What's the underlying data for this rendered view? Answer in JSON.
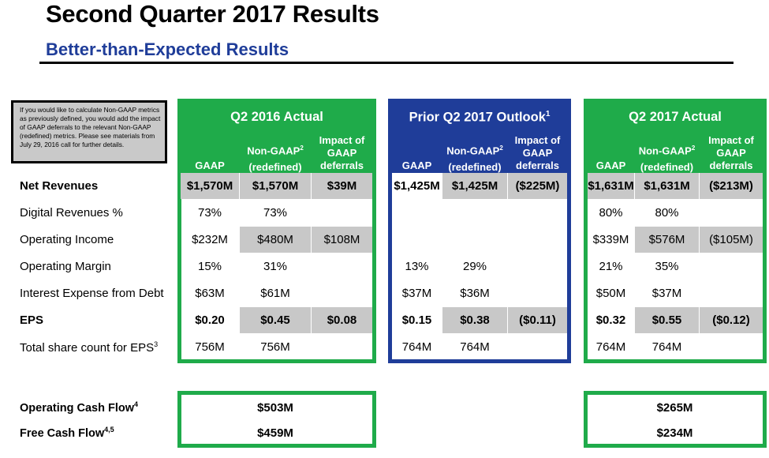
{
  "header": {
    "title": "Second Quarter 2017 Results",
    "subtitle": "Better-than-Expected Results"
  },
  "note": "If you would like to calculate Non-GAAP metrics as previously defined, you would add the impact of GAAP deferrals to the relevant Non-GAAP (redefined) metrics. Please see materials from July 29, 2016 call for further details.",
  "groups": {
    "q2_2016": {
      "title": "Q2 2016 Actual",
      "col_gaap": "GAAP",
      "col_nongaap_top": "Non-GAAP",
      "col_nongaap_sup": "2",
      "col_nongaap_bottom": "(redefined)",
      "col_impact_1": "Impact of",
      "col_impact_2": "GAAP",
      "col_impact_3": "deferrals",
      "color": "#1fab4a"
    },
    "outlook": {
      "title": "Prior Q2 2017 Outlook",
      "title_sup": "1",
      "col_gaap": "GAAP",
      "col_nongaap_top": "Non-GAAP",
      "col_nongaap_sup": "2",
      "col_nongaap_bottom": "(redefined)",
      "col_impact_1": "Impact of",
      "col_impact_2": "GAAP",
      "col_impact_3": "deferrals",
      "color": "#1f3d99"
    },
    "q2_2017": {
      "title": "Q2 2017 Actual",
      "col_gaap": "GAAP",
      "col_nongaap_top": "Non-GAAP",
      "col_nongaap_sup": "2",
      "col_nongaap_bottom": "(redefined)",
      "col_impact_1": "Impact of",
      "col_impact_2": "GAAP",
      "col_impact_3": "deferrals",
      "color": "#1fab4a"
    }
  },
  "rows": {
    "net_revenues": {
      "label": "Net Revenues",
      "q2_2016": [
        "$1,570M",
        "$1,570M",
        "$39M"
      ],
      "outlook": [
        "$1,425M",
        "$1,425M",
        "($225M)"
      ],
      "q2_2017": [
        "$1,631M",
        "$1,631M",
        "($213M)"
      ]
    },
    "digital_revenues": {
      "label": "Digital Revenues %",
      "q2_2016": [
        "73%",
        "73%",
        ""
      ],
      "outlook": [
        "",
        "",
        ""
      ],
      "q2_2017": [
        "80%",
        "80%",
        ""
      ]
    },
    "operating_income": {
      "label": "Operating Income",
      "q2_2016": [
        "$232M",
        "$480M",
        "$108M"
      ],
      "outlook": [
        "",
        "",
        ""
      ],
      "q2_2017": [
        "$339M",
        "$576M",
        "($105M)"
      ]
    },
    "operating_margin": {
      "label": "Operating Margin",
      "q2_2016": [
        "15%",
        "31%",
        ""
      ],
      "outlook": [
        "13%",
        "29%",
        ""
      ],
      "q2_2017": [
        "21%",
        "35%",
        ""
      ]
    },
    "interest_expense": {
      "label": "Interest Expense from Debt",
      "q2_2016": [
        "$63M",
        "$61M",
        ""
      ],
      "outlook": [
        "$37M",
        "$36M",
        ""
      ],
      "q2_2017": [
        "$50M",
        "$37M",
        ""
      ]
    },
    "eps": {
      "label": "EPS",
      "q2_2016": [
        "$0.20",
        "$0.45",
        "$0.08"
      ],
      "outlook": [
        "$0.15",
        "$0.38",
        "($0.11)"
      ],
      "q2_2017": [
        "$0.32",
        "$0.55",
        "($0.12)"
      ]
    },
    "share_count": {
      "label": "Total share count for EPS",
      "label_sup": "3",
      "q2_2016": [
        "756M",
        "756M",
        ""
      ],
      "outlook": [
        "764M",
        "764M",
        ""
      ],
      "q2_2017": [
        "764M",
        "764M",
        ""
      ]
    }
  },
  "cash_flow": {
    "operating": {
      "label": "Operating Cash Flow",
      "label_sup": "4",
      "q2_2016": "$503M",
      "q2_2017": "$265M"
    },
    "free": {
      "label": "Free Cash Flow",
      "label_sup": "4,5",
      "q2_2016": "$459M",
      "q2_2017": "$234M"
    }
  }
}
